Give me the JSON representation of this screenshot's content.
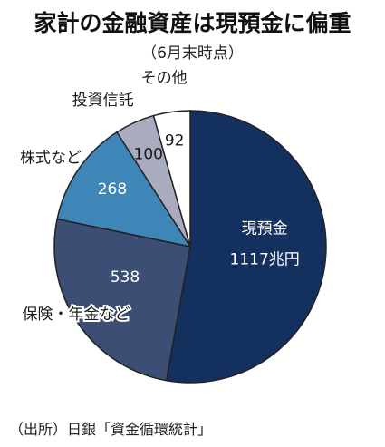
{
  "title": "家計の金融資産は現預金に偏重",
  "subtitle": "（6月末時点）",
  "source": "（出所）日銀「資金循環統計」",
  "chart_data": {
    "type": "pie",
    "unit": "兆円",
    "start": "12 o'clock, clockwise",
    "slices": [
      {
        "name": "現預金",
        "value": 1117,
        "value_label": "1117兆円",
        "color": "#14305e",
        "text_color": "#ffffff"
      },
      {
        "name": "保険・年金など",
        "value": 538,
        "value_label": "538",
        "color": "#3c4e73",
        "text_color": "#ffffff"
      },
      {
        "name": "株式など",
        "value": 268,
        "value_label": "268",
        "color": "#3f86b8",
        "text_color": "#ffffff"
      },
      {
        "name": "投資信託",
        "value": 100,
        "value_label": "100",
        "color": "#a9abbe",
        "text_color": "#1a1a1a"
      },
      {
        "name": "その他",
        "value": 92,
        "value_label": "92",
        "color": "#ffffff",
        "text_color": "#1a1a1a"
      }
    ]
  }
}
